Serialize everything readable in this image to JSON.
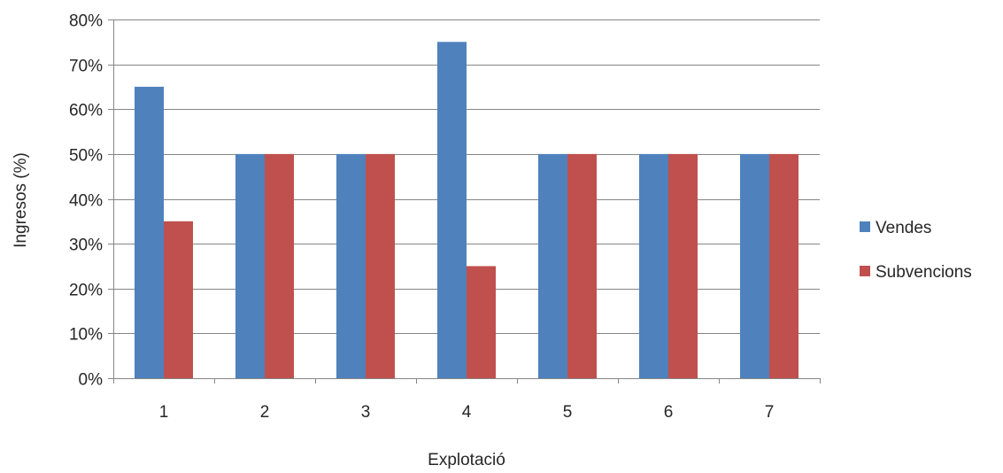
{
  "chart_data": {
    "type": "bar",
    "categories": [
      "1",
      "2",
      "3",
      "4",
      "5",
      "6",
      "7"
    ],
    "series": [
      {
        "name": "Vendes",
        "values": [
          65,
          50,
          50,
          75,
          50,
          50,
          50
        ],
        "color": "#4f81bd"
      },
      {
        "name": "Subvencions",
        "values": [
          35,
          50,
          50,
          25,
          50,
          50,
          50
        ],
        "color": "#c0504d"
      }
    ],
    "ylim": [
      0,
      80
    ],
    "yticks": [
      "0%",
      "10%",
      "20%",
      "30%",
      "40%",
      "50%",
      "60%",
      "70%",
      "80%"
    ],
    "xlabel": "Explotació",
    "ylabel": "Ingresos (%)",
    "grid": true,
    "legend_position": "right"
  }
}
